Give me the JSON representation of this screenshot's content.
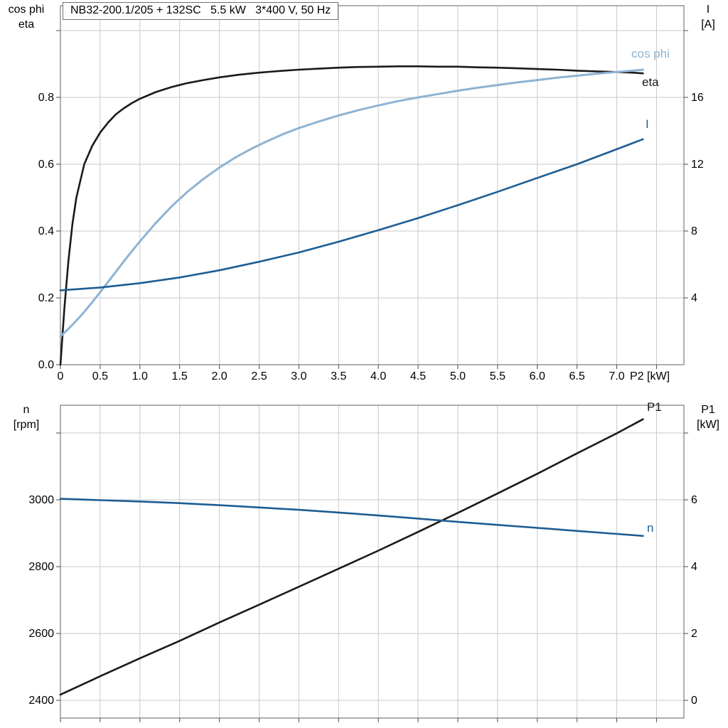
{
  "title_box": {
    "text": "NB32-200.1/205 + 132SC   5.5 kW   3*400 V, 50 Hz"
  },
  "axis_corner_labels": {
    "top_left": [
      "cos phi",
      "eta"
    ],
    "top_right": [
      "I",
      "[A]"
    ],
    "bottom_left": [
      "n",
      "[rpm]"
    ],
    "bottom_right": [
      "P1",
      "[kW]"
    ]
  },
  "colors": {
    "black_curve": "#1a1a1a",
    "dark_blue_curve": "#1d5d92",
    "light_blue_curve": "#8db3d3",
    "grid": "#c9c9c9",
    "border": "#7a7a7a",
    "tick": "#4a4a4a"
  },
  "chart_data": [
    {
      "type": "line",
      "title": "NB32-200.1/205 + 132SC   5.5 kW   3*400 V, 50 Hz",
      "x_axis": {
        "label": "P2 [kW]",
        "range": [
          0,
          7.845
        ],
        "ticks": [
          0,
          0.5,
          1,
          1.5,
          2,
          2.5,
          3,
          3.5,
          4,
          4.5,
          5,
          5.5,
          6,
          6.5,
          7,
          7.5
        ],
        "tick_labels": [
          "0",
          "0.5",
          "1.0",
          "1.5",
          "2.0",
          "2.5",
          "3.0",
          "3.5",
          "4.0",
          "4.5",
          "5.0",
          "5.5",
          "6.0",
          "6.5",
          "7.0",
          ""
        ]
      },
      "y_left": {
        "label": "cos phi / eta",
        "range": [
          0,
          1.0745
        ],
        "ticks": [
          0,
          0.2,
          0.4,
          0.6,
          0.8,
          1.0
        ],
        "tick_labels": [
          "0.0",
          "0.2",
          "0.4",
          "0.6",
          "0.8",
          ""
        ]
      },
      "y_right": {
        "label": "I [A]",
        "range": [
          0,
          21.49
        ],
        "ticks": [
          4,
          8,
          12,
          16,
          20
        ],
        "tick_labels": [
          "4",
          "8",
          "12",
          "16",
          ""
        ]
      },
      "grid": true,
      "legend_position": "curve-end-labels",
      "series": [
        {
          "name": "eta",
          "axis": "left",
          "color": "#1a1a1a",
          "width": 2.6,
          "points": [
            [
              0,
              0
            ],
            [
              0.05,
              0.17
            ],
            [
              0.1,
              0.31
            ],
            [
              0.15,
              0.42
            ],
            [
              0.2,
              0.5
            ],
            [
              0.3,
              0.6
            ],
            [
              0.4,
              0.655
            ],
            [
              0.5,
              0.695
            ],
            [
              0.6,
              0.725
            ],
            [
              0.7,
              0.75
            ],
            [
              0.8,
              0.768
            ],
            [
              0.9,
              0.783
            ],
            [
              1,
              0.796
            ],
            [
              1.2,
              0.816
            ],
            [
              1.4,
              0.831
            ],
            [
              1.6,
              0.843
            ],
            [
              1.8,
              0.852
            ],
            [
              2,
              0.86
            ],
            [
              2.25,
              0.868
            ],
            [
              2.5,
              0.874
            ],
            [
              2.75,
              0.879
            ],
            [
              3,
              0.883
            ],
            [
              3.25,
              0.886
            ],
            [
              3.5,
              0.889
            ],
            [
              3.75,
              0.891
            ],
            [
              4,
              0.892
            ],
            [
              4.25,
              0.893
            ],
            [
              4.5,
              0.893
            ],
            [
              4.75,
              0.892
            ],
            [
              5,
              0.892
            ],
            [
              5.25,
              0.89
            ],
            [
              5.5,
              0.889
            ],
            [
              5.75,
              0.887
            ],
            [
              6,
              0.885
            ],
            [
              6.25,
              0.883
            ],
            [
              6.5,
              0.88
            ],
            [
              6.75,
              0.878
            ],
            [
              7,
              0.876
            ],
            [
              7.2,
              0.874
            ],
            [
              7.33,
              0.872
            ]
          ]
        },
        {
          "name": "cos phi",
          "axis": "left",
          "color": "#8db3d3",
          "width": 3,
          "points": [
            [
              0,
              0.085
            ],
            [
              0.1,
              0.107
            ],
            [
              0.2,
              0.132
            ],
            [
              0.3,
              0.158
            ],
            [
              0.4,
              0.187
            ],
            [
              0.5,
              0.217
            ],
            [
              0.6,
              0.248
            ],
            [
              0.7,
              0.279
            ],
            [
              0.8,
              0.31
            ],
            [
              0.9,
              0.34
            ],
            [
              1,
              0.369
            ],
            [
              1.2,
              0.424
            ],
            [
              1.4,
              0.474
            ],
            [
              1.6,
              0.518
            ],
            [
              1.8,
              0.556
            ],
            [
              2,
              0.59
            ],
            [
              2.2,
              0.62
            ],
            [
              2.4,
              0.646
            ],
            [
              2.6,
              0.669
            ],
            [
              2.8,
              0.69
            ],
            [
              3,
              0.708
            ],
            [
              3.25,
              0.728
            ],
            [
              3.5,
              0.746
            ],
            [
              3.75,
              0.762
            ],
            [
              4,
              0.776
            ],
            [
              4.25,
              0.789
            ],
            [
              4.5,
              0.8
            ],
            [
              4.75,
              0.81
            ],
            [
              5,
              0.82
            ],
            [
              5.25,
              0.829
            ],
            [
              5.5,
              0.837
            ],
            [
              5.75,
              0.845
            ],
            [
              6,
              0.852
            ],
            [
              6.25,
              0.859
            ],
            [
              6.5,
              0.865
            ],
            [
              6.75,
              0.871
            ],
            [
              7,
              0.876
            ],
            [
              7.2,
              0.88
            ],
            [
              7.33,
              0.883
            ]
          ]
        },
        {
          "name": "I",
          "axis": "right",
          "color": "#1d5d92",
          "width": 2.6,
          "points": [
            [
              0,
              4.45
            ],
            [
              0.5,
              4.62
            ],
            [
              1,
              4.88
            ],
            [
              1.5,
              5.22
            ],
            [
              2,
              5.65
            ],
            [
              2.5,
              6.16
            ],
            [
              3,
              6.72
            ],
            [
              3.5,
              7.36
            ],
            [
              4,
              8.05
            ],
            [
              4.5,
              8.78
            ],
            [
              5,
              9.55
            ],
            [
              5.5,
              10.35
            ],
            [
              6,
              11.18
            ],
            [
              6.5,
              12
            ],
            [
              7,
              12.9
            ],
            [
              7.33,
              13.5
            ]
          ]
        }
      ]
    },
    {
      "type": "line",
      "title": "",
      "x_axis": {
        "label": "",
        "range": [
          0,
          7.845
        ],
        "ticks": [
          0,
          0.5,
          1,
          1.5,
          2,
          2.5,
          3,
          3.5,
          4,
          4.5,
          5,
          5.5,
          6,
          6.5,
          7,
          7.5
        ],
        "tick_labels": [
          "",
          "",
          "",
          "",
          "",
          "",
          "",
          "",
          "",
          "",
          "",
          "",
          "",
          "",
          "",
          ""
        ]
      },
      "y_left": {
        "label": "n [rpm]",
        "range": [
          2347,
          3283
        ],
        "ticks": [
          2400,
          2600,
          2800,
          3000,
          3200
        ],
        "tick_labels": [
          "2400",
          "2600",
          "2800",
          "3000",
          ""
        ]
      },
      "y_right": {
        "label": "P1 [kW]",
        "range": [
          -0.53,
          8.83
        ],
        "ticks": [
          0,
          2,
          4,
          6,
          8
        ],
        "tick_labels": [
          "0",
          "2",
          "4",
          "6",
          ""
        ]
      },
      "grid": true,
      "legend_position": "curve-end-labels",
      "series": [
        {
          "name": "P1",
          "axis": "right",
          "color": "#1a1a1a",
          "width": 2.6,
          "points": [
            [
              0,
              0.17
            ],
            [
              0.5,
              0.72
            ],
            [
              1,
              1.26
            ],
            [
              1.5,
              1.78
            ],
            [
              2,
              2.33
            ],
            [
              2.5,
              2.86
            ],
            [
              3,
              3.4
            ],
            [
              3.5,
              3.94
            ],
            [
              4,
              4.48
            ],
            [
              4.5,
              5.04
            ],
            [
              5,
              5.61
            ],
            [
              5.5,
              6.19
            ],
            [
              6,
              6.78
            ],
            [
              6.5,
              7.39
            ],
            [
              7,
              7.99
            ],
            [
              7.33,
              8.41
            ]
          ]
        },
        {
          "name": "n",
          "axis": "left",
          "color": "#1d5d92",
          "width": 2.6,
          "points": [
            [
              0,
              3003
            ],
            [
              0.5,
              2999
            ],
            [
              1,
              2995
            ],
            [
              1.5,
              2990
            ],
            [
              2,
              2984
            ],
            [
              2.5,
              2977
            ],
            [
              3,
              2970
            ],
            [
              3.5,
              2962
            ],
            [
              4,
              2953
            ],
            [
              4.5,
              2944
            ],
            [
              5,
              2934
            ],
            [
              5.5,
              2925
            ],
            [
              6,
              2916
            ],
            [
              6.5,
              2907
            ],
            [
              7,
              2898
            ],
            [
              7.33,
              2892
            ]
          ]
        }
      ]
    }
  ]
}
